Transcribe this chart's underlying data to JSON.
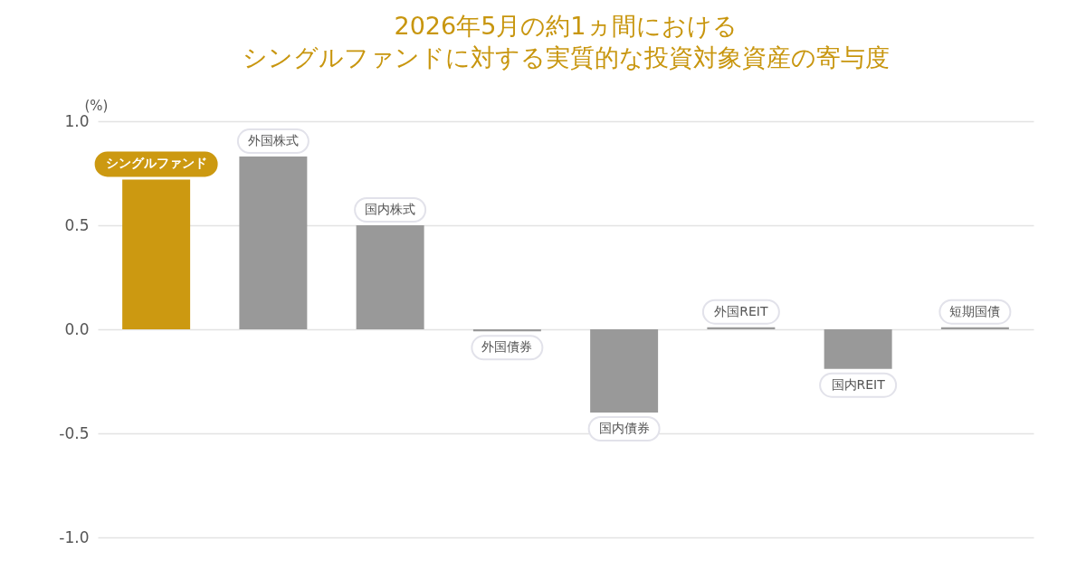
{
  "chart_data": {
    "type": "bar",
    "title": "2026年5月の約1ヵ間における",
    "subtitle": "シングルファンドに対する実質的な投資対象資産の寄与度",
    "ylabel": "(%)",
    "categories": [
      "シングルファンド",
      "外国株式",
      "国内株式",
      "外国債券",
      "国内債券",
      "外国REIT",
      "国内REIT",
      "短期国債"
    ],
    "values": [
      0.72,
      0.83,
      0.5,
      -0.01,
      -0.4,
      0.01,
      -0.19,
      0.01
    ],
    "colors": [
      "#cc9911",
      "#999999",
      "#999999",
      "#999999",
      "#999999",
      "#999999",
      "#999999",
      "#999999"
    ],
    "ylim": [
      -1.0,
      1.0
    ],
    "yticks": [
      {
        "value": -1,
        "label": "-1.0"
      },
      {
        "value": -0.5,
        "label": "-0.5"
      },
      {
        "value": 0,
        "label": "0.0"
      },
      {
        "value": 0.5,
        "label": "0.5"
      },
      {
        "value": 1,
        "label": "1.0"
      }
    ],
    "grid": "y",
    "legend": false
  }
}
